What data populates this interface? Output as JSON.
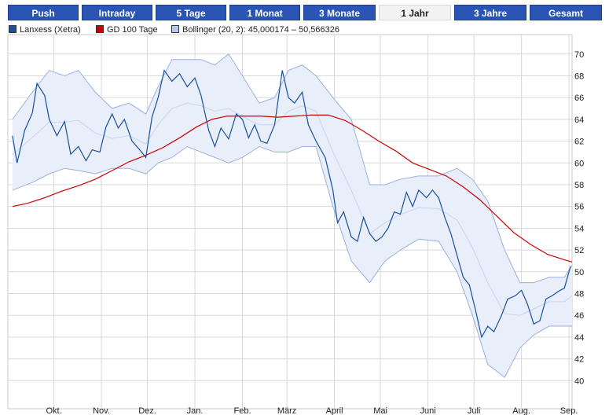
{
  "tabs": [
    {
      "label": "Push",
      "active": false
    },
    {
      "label": "Intraday",
      "active": false
    },
    {
      "label": "5 Tage",
      "active": false
    },
    {
      "label": "1 Monat",
      "active": false
    },
    {
      "label": "3 Monate",
      "active": false
    },
    {
      "label": "1 Jahr",
      "active": true
    },
    {
      "label": "3 Jahre",
      "active": false
    },
    {
      "label": "Gesamt",
      "active": false
    }
  ],
  "legend": [
    {
      "label": "Lanxess (Xetra)",
      "color": "#1a4f9a"
    },
    {
      "label": "GD 100 Tage",
      "color": "#cc0000"
    },
    {
      "label": "Bollinger (20, 2): 45,000174 – 50,566326",
      "color": "#b8c8ea"
    }
  ],
  "chart_data": {
    "type": "line",
    "title": "",
    "xlabel": "",
    "ylabel": "",
    "ylim": [
      38,
      71.5
    ],
    "yticks": [
      40,
      42,
      44,
      46,
      48,
      50,
      52,
      54,
      56,
      58,
      60,
      62,
      64,
      66,
      68,
      70
    ],
    "xticks": [
      {
        "label": "Okt.",
        "x": "2007-10-01"
      },
      {
        "label": "Nov.",
        "x": "2007-11-01"
      },
      {
        "label": "Dez.",
        "x": "2007-12-01"
      },
      {
        "label": "Jan.",
        "x": "2008-01-01"
      },
      {
        "label": "Feb.",
        "x": "2008-02-01"
      },
      {
        "label": "März",
        "x": "2008-03-01"
      },
      {
        "label": "April",
        "x": "2008-04-01"
      },
      {
        "label": "Mai",
        "x": "2008-05-01"
      },
      {
        "label": "Juni",
        "x": "2008-06-01"
      },
      {
        "label": "Juli",
        "x": "2008-07-01"
      },
      {
        "label": "Aug.",
        "x": "2008-08-01"
      },
      {
        "label": "Sep.",
        "x": "2008-09-01"
      }
    ],
    "grid": true,
    "colors": {
      "price": "#1a4f9a",
      "sma": "#cc0000",
      "band_fill": "#e8eefa",
      "band_edge": "#9bb0dd",
      "band_mid": "#c8d4ee",
      "grid": "#d8d8d8"
    },
    "series": [
      {
        "name": "Lanxess (Xetra)",
        "points": [
          [
            "2007-09-04",
            62.5
          ],
          [
            "2007-09-07",
            60.0
          ],
          [
            "2007-09-12",
            63.0
          ],
          [
            "2007-09-17",
            64.6
          ],
          [
            "2007-09-20",
            67.3
          ],
          [
            "2007-09-25",
            66.2
          ],
          [
            "2007-09-28",
            64.0
          ],
          [
            "2007-10-03",
            62.5
          ],
          [
            "2007-10-08",
            63.8
          ],
          [
            "2007-10-12",
            60.8
          ],
          [
            "2007-10-17",
            61.5
          ],
          [
            "2007-10-22",
            60.2
          ],
          [
            "2007-10-26",
            61.2
          ],
          [
            "2007-10-31",
            61.0
          ],
          [
            "2007-11-04",
            63.3
          ],
          [
            "2007-11-08",
            64.5
          ],
          [
            "2007-11-12",
            63.2
          ],
          [
            "2007-11-16",
            64.0
          ],
          [
            "2007-11-21",
            62.0
          ],
          [
            "2007-11-26",
            61.2
          ],
          [
            "2007-11-30",
            60.5
          ],
          [
            "2007-12-04",
            64.2
          ],
          [
            "2007-12-08",
            66.0
          ],
          [
            "2007-12-12",
            68.5
          ],
          [
            "2007-12-17",
            67.5
          ],
          [
            "2007-12-22",
            68.2
          ],
          [
            "2007-12-27",
            67.0
          ],
          [
            "2008-01-01",
            67.8
          ],
          [
            "2008-01-05",
            66.2
          ],
          [
            "2008-01-10",
            63.0
          ],
          [
            "2008-01-14",
            61.5
          ],
          [
            "2008-01-18",
            63.2
          ],
          [
            "2008-01-23",
            62.2
          ],
          [
            "2008-01-28",
            64.5
          ],
          [
            "2008-02-01",
            64.0
          ],
          [
            "2008-02-05",
            62.3
          ],
          [
            "2008-02-09",
            63.5
          ],
          [
            "2008-02-13",
            62.0
          ],
          [
            "2008-02-17",
            61.8
          ],
          [
            "2008-02-22",
            63.5
          ],
          [
            "2008-02-27",
            68.5
          ],
          [
            "2008-03-02",
            66.0
          ],
          [
            "2008-03-06",
            65.5
          ],
          [
            "2008-03-11",
            66.5
          ],
          [
            "2008-03-15",
            63.5
          ],
          [
            "2008-03-20",
            62.0
          ],
          [
            "2008-03-26",
            60.5
          ],
          [
            "2008-03-31",
            57.5
          ],
          [
            "2008-04-03",
            54.5
          ],
          [
            "2008-04-07",
            55.5
          ],
          [
            "2008-04-12",
            53.2
          ],
          [
            "2008-04-16",
            52.8
          ],
          [
            "2008-04-20",
            55.0
          ],
          [
            "2008-04-24",
            53.5
          ],
          [
            "2008-04-28",
            52.8
          ],
          [
            "2008-05-02",
            53.2
          ],
          [
            "2008-05-06",
            54.0
          ],
          [
            "2008-05-10",
            55.5
          ],
          [
            "2008-05-14",
            55.3
          ],
          [
            "2008-05-18",
            57.3
          ],
          [
            "2008-05-22",
            56.0
          ],
          [
            "2008-05-26",
            57.5
          ],
          [
            "2008-05-31",
            56.8
          ],
          [
            "2008-06-04",
            57.5
          ],
          [
            "2008-06-08",
            56.8
          ],
          [
            "2008-06-12",
            55.0
          ],
          [
            "2008-06-16",
            53.5
          ],
          [
            "2008-06-20",
            51.5
          ],
          [
            "2008-06-24",
            49.5
          ],
          [
            "2008-06-28",
            48.8
          ],
          [
            "2008-07-02",
            46.5
          ],
          [
            "2008-07-06",
            44.0
          ],
          [
            "2008-07-10",
            45.0
          ],
          [
            "2008-07-14",
            44.5
          ],
          [
            "2008-07-19",
            46.0
          ],
          [
            "2008-07-23",
            47.5
          ],
          [
            "2008-07-28",
            47.8
          ],
          [
            "2008-08-01",
            48.3
          ],
          [
            "2008-08-05",
            47.0
          ],
          [
            "2008-08-09",
            45.2
          ],
          [
            "2008-08-13",
            45.5
          ],
          [
            "2008-08-17",
            47.5
          ],
          [
            "2008-08-21",
            47.8
          ],
          [
            "2008-08-25",
            48.2
          ],
          [
            "2008-08-29",
            48.5
          ],
          [
            "2008-09-02",
            50.5
          ]
        ]
      },
      {
        "name": "GD 100 Tage",
        "points": [
          [
            "2007-09-04",
            56.0
          ],
          [
            "2007-09-14",
            56.3
          ],
          [
            "2007-09-25",
            56.8
          ],
          [
            "2007-10-06",
            57.4
          ],
          [
            "2007-10-17",
            57.9
          ],
          [
            "2007-10-28",
            58.5
          ],
          [
            "2007-11-08",
            59.3
          ],
          [
            "2007-11-19",
            60.1
          ],
          [
            "2007-11-30",
            60.7
          ],
          [
            "2007-12-11",
            61.4
          ],
          [
            "2007-12-22",
            62.3
          ],
          [
            "2008-01-02",
            63.3
          ],
          [
            "2008-01-12",
            64.0
          ],
          [
            "2008-01-22",
            64.3
          ],
          [
            "2008-02-02",
            64.3
          ],
          [
            "2008-02-13",
            64.3
          ],
          [
            "2008-02-24",
            64.2
          ],
          [
            "2008-03-06",
            64.3
          ],
          [
            "2008-03-17",
            64.4
          ],
          [
            "2008-03-28",
            64.4
          ],
          [
            "2008-04-08",
            63.9
          ],
          [
            "2008-04-19",
            63.0
          ],
          [
            "2008-04-30",
            62.0
          ],
          [
            "2008-05-11",
            61.1
          ],
          [
            "2008-05-22",
            60.0
          ],
          [
            "2008-06-02",
            59.4
          ],
          [
            "2008-06-13",
            58.8
          ],
          [
            "2008-06-24",
            57.8
          ],
          [
            "2008-07-05",
            56.6
          ],
          [
            "2008-07-16",
            55.1
          ],
          [
            "2008-07-27",
            53.6
          ],
          [
            "2008-08-07",
            52.5
          ],
          [
            "2008-08-18",
            51.6
          ],
          [
            "2008-08-29",
            51.1
          ],
          [
            "2008-09-03",
            50.9
          ]
        ]
      },
      {
        "name": "Bollinger (20, 2)",
        "upper": [
          [
            "2007-09-04",
            64.0
          ],
          [
            "2007-09-17",
            66.5
          ],
          [
            "2007-09-28",
            68.5
          ],
          [
            "2007-10-08",
            68.0
          ],
          [
            "2007-10-17",
            68.5
          ],
          [
            "2007-10-28",
            66.5
          ],
          [
            "2007-11-08",
            65.0
          ],
          [
            "2007-11-19",
            65.5
          ],
          [
            "2007-11-30",
            64.5
          ],
          [
            "2007-12-08",
            67.0
          ],
          [
            "2007-12-17",
            69.5
          ],
          [
            "2007-12-27",
            69.5
          ],
          [
            "2008-01-05",
            69.5
          ],
          [
            "2008-01-14",
            69.0
          ],
          [
            "2008-01-23",
            70.0
          ],
          [
            "2008-02-01",
            68.0
          ],
          [
            "2008-02-12",
            65.5
          ],
          [
            "2008-02-22",
            66.0
          ],
          [
            "2008-03-02",
            68.5
          ],
          [
            "2008-03-11",
            69.0
          ],
          [
            "2008-03-20",
            68.0
          ],
          [
            "2008-03-31",
            66.0
          ],
          [
            "2008-04-12",
            64.0
          ],
          [
            "2008-04-24",
            58.0
          ],
          [
            "2008-05-04",
            58.0
          ],
          [
            "2008-05-14",
            58.5
          ],
          [
            "2008-05-26",
            58.8
          ],
          [
            "2008-06-08",
            58.8
          ],
          [
            "2008-06-20",
            59.5
          ],
          [
            "2008-06-30",
            58.5
          ],
          [
            "2008-07-10",
            56.5
          ],
          [
            "2008-07-21",
            52.0
          ],
          [
            "2008-07-31",
            49.0
          ],
          [
            "2008-08-09",
            49.0
          ],
          [
            "2008-08-19",
            49.5
          ],
          [
            "2008-08-29",
            49.5
          ],
          [
            "2008-09-03",
            50.6
          ]
        ],
        "lower": [
          [
            "2007-09-04",
            57.5
          ],
          [
            "2007-09-17",
            58.2
          ],
          [
            "2007-09-28",
            59.0
          ],
          [
            "2007-10-08",
            59.5
          ],
          [
            "2007-10-17",
            59.3
          ],
          [
            "2007-10-28",
            59.0
          ],
          [
            "2007-11-08",
            59.5
          ],
          [
            "2007-11-19",
            59.5
          ],
          [
            "2007-11-30",
            59.0
          ],
          [
            "2007-12-08",
            60.0
          ],
          [
            "2007-12-17",
            60.5
          ],
          [
            "2007-12-27",
            61.5
          ],
          [
            "2008-01-05",
            61.0
          ],
          [
            "2008-01-14",
            60.5
          ],
          [
            "2008-01-23",
            60.0
          ],
          [
            "2008-02-01",
            60.5
          ],
          [
            "2008-02-12",
            61.5
          ],
          [
            "2008-02-22",
            61.0
          ],
          [
            "2008-03-02",
            61.0
          ],
          [
            "2008-03-11",
            61.5
          ],
          [
            "2008-03-20",
            61.5
          ],
          [
            "2008-03-31",
            56.0
          ],
          [
            "2008-04-12",
            51.0
          ],
          [
            "2008-04-24",
            49.0
          ],
          [
            "2008-05-04",
            51.0
          ],
          [
            "2008-05-14",
            52.0
          ],
          [
            "2008-05-26",
            53.0
          ],
          [
            "2008-06-08",
            52.8
          ],
          [
            "2008-06-20",
            50.0
          ],
          [
            "2008-06-30",
            46.0
          ],
          [
            "2008-07-10",
            41.5
          ],
          [
            "2008-07-21",
            40.3
          ],
          [
            "2008-07-31",
            43.0
          ],
          [
            "2008-08-09",
            44.2
          ],
          [
            "2008-08-19",
            45.0
          ],
          [
            "2008-08-29",
            45.0
          ],
          [
            "2008-09-03",
            45.0
          ]
        ]
      }
    ]
  }
}
